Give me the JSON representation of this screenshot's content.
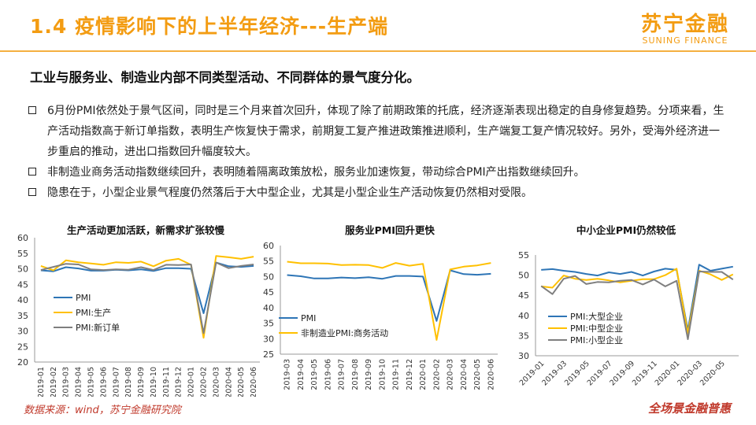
{
  "header": {
    "title": "1.4 疫情影响下的上半年经济---生产端",
    "logo_cn": "苏宁金融",
    "logo_en": "SUNING FINANCE"
  },
  "subtitle": "工业与服务业、制造业内部不同类型活动、不同群体的景气度分化。",
  "bullets": [
    "6月份PMI依然处于景气区间，同时是三个月来首次回升，体现了除了前期政策的托底，经济逐渐表现出稳定的自身修复趋势。分项来看，生产活动指数高于新订单指数，表明生产恢复快于需求，前期复工复产推进政策推进顺利，生产端复工复产情况较好。另外，受海外经济进一步重启的推动，进出口指数回升幅度较大。",
    "非制造业商务活动指数继续回升，表明随着隔离政策放松，服务业加速恢复，带动综合PMI产出指数继续回升。",
    "隐患在于，小型企业景气程度仍然落后于大中型企业，尤其是小型企业生产活动恢复仍然相对受限。"
  ],
  "footer": {
    "source": "数据来源：wind，苏宁金融研究院",
    "logo": "全场景金融普惠"
  },
  "colors": {
    "accent": "#f39c12",
    "pmi": "#2e75b6",
    "production": "#ffc000",
    "new_orders": "#7f7f7f"
  },
  "chart_data": [
    {
      "type": "line",
      "title": "生产活动更加活跃，新需求扩张较慢",
      "x": [
        "2019-01",
        "2019-02",
        "2019-03",
        "2019-04",
        "2019-05",
        "2019-06",
        "2019-07",
        "2019-08",
        "2019-09",
        "2019-10",
        "2019-11",
        "2019-12",
        "2020-01",
        "2020-02",
        "2020-03",
        "2020-04",
        "2020-05",
        "2020-06"
      ],
      "ylim": [
        20,
        60
      ],
      "yticks": [
        20,
        25,
        30,
        35,
        40,
        45,
        50,
        55,
        60
      ],
      "series": [
        {
          "name": "PMI",
          "color": "#2e75b6",
          "values": [
            49.5,
            49.2,
            50.5,
            50.1,
            49.4,
            49.4,
            49.7,
            49.5,
            49.8,
            49.3,
            50.2,
            50.2,
            50.0,
            35.7,
            52.0,
            50.8,
            50.6,
            50.9
          ]
        },
        {
          "name": "PMI:生产",
          "color": "#ffc000",
          "values": [
            50.9,
            49.5,
            52.7,
            52.1,
            51.7,
            51.3,
            52.1,
            51.9,
            52.3,
            50.8,
            52.6,
            53.2,
            51.3,
            27.8,
            54.1,
            53.7,
            53.2,
            53.9
          ]
        },
        {
          "name": "PMI:新订单",
          "color": "#7f7f7f",
          "values": [
            49.6,
            50.6,
            51.6,
            51.4,
            49.8,
            49.6,
            49.8,
            49.7,
            50.5,
            49.6,
            51.3,
            51.2,
            51.4,
            29.3,
            52.0,
            50.2,
            50.9,
            51.4
          ]
        }
      ],
      "legend": "left-inside"
    },
    {
      "type": "line",
      "title": "服务业PMI回升更快",
      "x": [
        "2019-03",
        "2019-04",
        "2019-05",
        "2019-06",
        "2019-07",
        "2019-08",
        "2019-09",
        "2019-10",
        "2019-11",
        "2019-12",
        "2020-01",
        "2020-02",
        "2020-03",
        "2020-04",
        "2020-05",
        "2020-06"
      ],
      "ylim": [
        25,
        60
      ],
      "yticks": [
        25,
        30,
        35,
        40,
        45,
        50,
        55,
        60
      ],
      "series": [
        {
          "name": "PMI",
          "color": "#2e75b6",
          "values": [
            50.5,
            50.1,
            49.4,
            49.4,
            49.7,
            49.5,
            49.8,
            49.3,
            50.2,
            50.2,
            50.0,
            35.7,
            52.0,
            50.8,
            50.6,
            50.9
          ]
        },
        {
          "name": "非制造业PMI:商务活动",
          "color": "#ffc000",
          "values": [
            54.8,
            54.3,
            54.3,
            54.2,
            53.7,
            53.8,
            53.7,
            52.8,
            54.4,
            53.5,
            54.1,
            29.6,
            52.3,
            53.2,
            53.6,
            54.4
          ]
        }
      ],
      "legend": "left-inside"
    },
    {
      "type": "line",
      "title": "中小企业PMI仍然较低",
      "x": [
        "2019-01",
        "2019-02",
        "2019-03",
        "2019-04",
        "2019-05",
        "2019-06",
        "2019-07",
        "2019-08",
        "2019-09",
        "2019-10",
        "2019-11",
        "2019-12",
        "2020-01",
        "2020-02",
        "2020-03",
        "2020-04",
        "2020-05",
        "2020-06"
      ],
      "xtick_labels": [
        "2019-01",
        "2019-03",
        "2019-05",
        "2019-07",
        "2019-09",
        "2019-11",
        "2020-01",
        "2020-03",
        "2020-05"
      ],
      "ylim": [
        30,
        55
      ],
      "yticks": [
        30,
        35,
        40,
        45,
        50,
        55
      ],
      "series": [
        {
          "name": "PMI:大型企业",
          "color": "#2e75b6",
          "values": [
            51.3,
            51.5,
            51.1,
            50.8,
            50.3,
            49.9,
            50.7,
            50.3,
            50.8,
            49.9,
            50.9,
            51.6,
            51.3,
            36.3,
            52.6,
            51.1,
            51.6,
            52.1
          ]
        },
        {
          "name": "PMI:中型企业",
          "color": "#ffc000",
          "values": [
            47.2,
            46.9,
            49.9,
            49.1,
            48.8,
            49.1,
            48.7,
            48.2,
            48.6,
            49.0,
            49.0,
            50.0,
            51.6,
            35.5,
            51.1,
            50.2,
            48.8,
            50.2
          ]
        },
        {
          "name": "PMI:小型企业",
          "color": "#7f7f7f",
          "values": [
            47.3,
            45.3,
            49.1,
            49.8,
            47.8,
            48.3,
            48.2,
            48.6,
            48.8,
            47.7,
            48.9,
            47.2,
            48.6,
            34.1,
            50.9,
            50.8,
            50.8,
            48.9
          ]
        }
      ],
      "legend": "left-inside"
    }
  ]
}
